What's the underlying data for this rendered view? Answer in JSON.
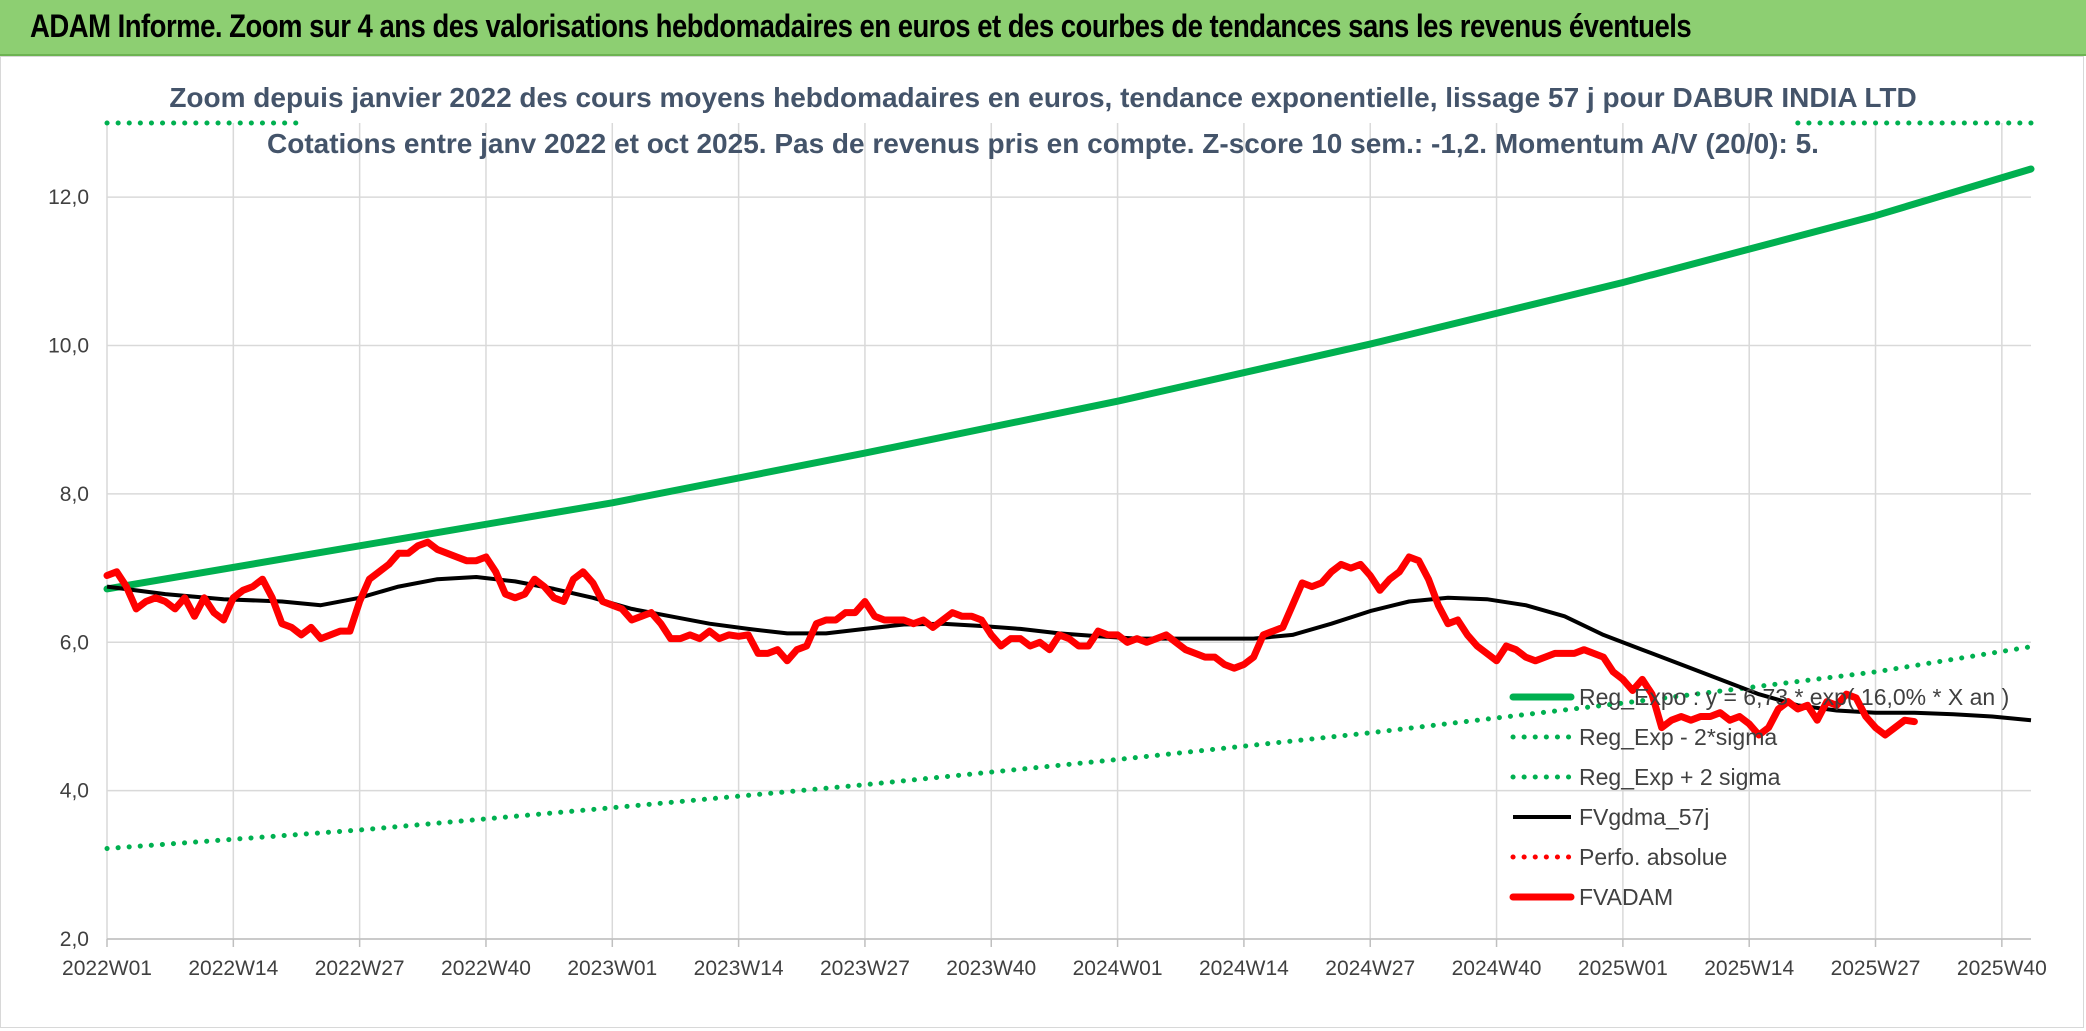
{
  "banner": {
    "title": "ADAM Informe. Zoom sur 4 ans des valorisations hebdomadaires en euros et des courbes de tendances sans les revenus éventuels"
  },
  "chart_data": {
    "type": "line",
    "title_lines": [
      "Zoom depuis janvier 2022 des cours moyens hebdomadaires en euros, tendance exponentielle, lissage 57 j pour DABUR INDIA LTD",
      "Cotations entre janv 2022 et oct 2025. Pas de revenus pris en compte. Z-score 10 sem.: -1,2. Momentum A/V (20/0): 5."
    ],
    "xlabel": "",
    "ylabel": "",
    "ylim": [
      2,
      13
    ],
    "x_range": [
      0,
      198
    ],
    "y_ticks": [
      {
        "value": 2,
        "label": "2,0"
      },
      {
        "value": 4,
        "label": "4,0"
      },
      {
        "value": 6,
        "label": "6,0"
      },
      {
        "value": 8,
        "label": "8,0"
      },
      {
        "value": 10,
        "label": "10,0"
      },
      {
        "value": 12,
        "label": "12,0"
      }
    ],
    "x_ticks": [
      {
        "value": 0,
        "label": "2022W01"
      },
      {
        "value": 13,
        "label": "2022W14"
      },
      {
        "value": 26,
        "label": "2022W27"
      },
      {
        "value": 39,
        "label": "2022W40"
      },
      {
        "value": 52,
        "label": "2023W01"
      },
      {
        "value": 65,
        "label": "2023W14"
      },
      {
        "value": 78,
        "label": "2023W27"
      },
      {
        "value": 91,
        "label": "2023W40"
      },
      {
        "value": 104,
        "label": "2024W01"
      },
      {
        "value": 117,
        "label": "2024W14"
      },
      {
        "value": 130,
        "label": "2024W27"
      },
      {
        "value": 143,
        "label": "2024W40"
      },
      {
        "value": 156,
        "label": "2025W01"
      },
      {
        "value": 169,
        "label": "2025W14"
      },
      {
        "value": 182,
        "label": "2025W27"
      },
      {
        "value": 195,
        "label": "2025W40"
      }
    ],
    "grid": true,
    "legend_position": "bottom-right",
    "colors": {
      "green": "#00b050",
      "black": "#000000",
      "red": "#ff0000",
      "grid": "#d9d9d9"
    },
    "series": [
      {
        "name": "Reg_Expo : y = 6,73 * exp( 16,0% *  X  an )",
        "style": "solid-thick",
        "color": "#00b050",
        "points": [
          [
            0,
            6.72
          ],
          [
            26,
            7.3
          ],
          [
            52,
            7.88
          ],
          [
            78,
            8.55
          ],
          [
            104,
            9.25
          ],
          [
            130,
            10.02
          ],
          [
            156,
            10.85
          ],
          [
            182,
            11.75
          ],
          [
            198,
            12.38
          ]
        ]
      },
      {
        "name": "Reg_Exp - 2*sigma",
        "style": "dotted",
        "color": "#00b050",
        "points": [
          [
            0,
            3.22
          ],
          [
            26,
            3.47
          ],
          [
            52,
            3.77
          ],
          [
            78,
            4.08
          ],
          [
            104,
            4.42
          ],
          [
            130,
            4.78
          ],
          [
            156,
            5.18
          ],
          [
            182,
            5.6
          ],
          [
            198,
            5.94
          ]
        ]
      },
      {
        "name": "Reg_Exp + 2 sigma",
        "style": "dotted",
        "color": "#00b050",
        "points": [
          [
            0,
            13.0
          ],
          [
            20,
            13.0
          ],
          [
            174,
            13.0
          ],
          [
            198,
            13.0
          ]
        ]
      },
      {
        "name": "FVgdma_57j",
        "style": "solid",
        "color": "#000000",
        "points": [
          [
            0,
            6.75
          ],
          [
            6,
            6.65
          ],
          [
            12,
            6.58
          ],
          [
            18,
            6.55
          ],
          [
            22,
            6.5
          ],
          [
            26,
            6.6
          ],
          [
            30,
            6.75
          ],
          [
            34,
            6.85
          ],
          [
            38,
            6.88
          ],
          [
            42,
            6.82
          ],
          [
            46,
            6.72
          ],
          [
            50,
            6.6
          ],
          [
            54,
            6.45
          ],
          [
            58,
            6.35
          ],
          [
            62,
            6.25
          ],
          [
            66,
            6.18
          ],
          [
            70,
            6.12
          ],
          [
            74,
            6.12
          ],
          [
            78,
            6.18
          ],
          [
            82,
            6.24
          ],
          [
            86,
            6.25
          ],
          [
            90,
            6.22
          ],
          [
            94,
            6.18
          ],
          [
            98,
            6.12
          ],
          [
            102,
            6.08
          ],
          [
            106,
            6.05
          ],
          [
            110,
            6.05
          ],
          [
            114,
            6.05
          ],
          [
            118,
            6.05
          ],
          [
            122,
            6.1
          ],
          [
            126,
            6.25
          ],
          [
            130,
            6.42
          ],
          [
            134,
            6.55
          ],
          [
            138,
            6.6
          ],
          [
            142,
            6.58
          ],
          [
            146,
            6.5
          ],
          [
            150,
            6.35
          ],
          [
            154,
            6.1
          ],
          [
            158,
            5.9
          ],
          [
            162,
            5.7
          ],
          [
            166,
            5.5
          ],
          [
            170,
            5.3
          ],
          [
            174,
            5.15
          ],
          [
            178,
            5.08
          ],
          [
            182,
            5.05
          ],
          [
            186,
            5.05
          ],
          [
            190,
            5.03
          ],
          [
            194,
            5.0
          ],
          [
            198,
            4.95
          ]
        ]
      },
      {
        "name": "Perfo. absolue",
        "style": "dotted",
        "color": "#ff0000",
        "points": []
      },
      {
        "name": "FVADAM",
        "style": "solid-thick",
        "color": "#ff0000",
        "points": [
          [
            0,
            6.9
          ],
          [
            1,
            6.95
          ],
          [
            2,
            6.75
          ],
          [
            3,
            6.45
          ],
          [
            4,
            6.55
          ],
          [
            5,
            6.6
          ],
          [
            6,
            6.55
          ],
          [
            7,
            6.45
          ],
          [
            8,
            6.6
          ],
          [
            9,
            6.35
          ],
          [
            10,
            6.6
          ],
          [
            11,
            6.4
          ],
          [
            12,
            6.3
          ],
          [
            13,
            6.6
          ],
          [
            14,
            6.7
          ],
          [
            15,
            6.75
          ],
          [
            16,
            6.85
          ],
          [
            17,
            6.6
          ],
          [
            18,
            6.25
          ],
          [
            19,
            6.2
          ],
          [
            20,
            6.1
          ],
          [
            21,
            6.2
          ],
          [
            22,
            6.05
          ],
          [
            23,
            6.1
          ],
          [
            24,
            6.15
          ],
          [
            25,
            6.15
          ],
          [
            26,
            6.55
          ],
          [
            27,
            6.85
          ],
          [
            28,
            6.95
          ],
          [
            29,
            7.05
          ],
          [
            30,
            7.2
          ],
          [
            31,
            7.2
          ],
          [
            32,
            7.3
          ],
          [
            33,
            7.35
          ],
          [
            34,
            7.25
          ],
          [
            35,
            7.2
          ],
          [
            36,
            7.15
          ],
          [
            37,
            7.1
          ],
          [
            38,
            7.1
          ],
          [
            39,
            7.15
          ],
          [
            40,
            6.95
          ],
          [
            41,
            6.65
          ],
          [
            42,
            6.6
          ],
          [
            43,
            6.65
          ],
          [
            44,
            6.85
          ],
          [
            45,
            6.75
          ],
          [
            46,
            6.6
          ],
          [
            47,
            6.55
          ],
          [
            48,
            6.85
          ],
          [
            49,
            6.95
          ],
          [
            50,
            6.8
          ],
          [
            51,
            6.55
          ],
          [
            52,
            6.5
          ],
          [
            53,
            6.45
          ],
          [
            54,
            6.3
          ],
          [
            55,
            6.35
          ],
          [
            56,
            6.4
          ],
          [
            57,
            6.25
          ],
          [
            58,
            6.05
          ],
          [
            59,
            6.05
          ],
          [
            60,
            6.1
          ],
          [
            61,
            6.05
          ],
          [
            62,
            6.15
          ],
          [
            63,
            6.05
          ],
          [
            64,
            6.1
          ],
          [
            65,
            6.08
          ],
          [
            66,
            6.1
          ],
          [
            67,
            5.85
          ],
          [
            68,
            5.85
          ],
          [
            69,
            5.9
          ],
          [
            70,
            5.75
          ],
          [
            71,
            5.9
          ],
          [
            72,
            5.95
          ],
          [
            73,
            6.25
          ],
          [
            74,
            6.3
          ],
          [
            75,
            6.3
          ],
          [
            76,
            6.4
          ],
          [
            77,
            6.4
          ],
          [
            78,
            6.55
          ],
          [
            79,
            6.35
          ],
          [
            80,
            6.3
          ],
          [
            81,
            6.3
          ],
          [
            82,
            6.3
          ],
          [
            83,
            6.25
          ],
          [
            84,
            6.3
          ],
          [
            85,
            6.2
          ],
          [
            86,
            6.3
          ],
          [
            87,
            6.4
          ],
          [
            88,
            6.35
          ],
          [
            89,
            6.35
          ],
          [
            90,
            6.3
          ],
          [
            91,
            6.1
          ],
          [
            92,
            5.95
          ],
          [
            93,
            6.05
          ],
          [
            94,
            6.05
          ],
          [
            95,
            5.95
          ],
          [
            96,
            6.0
          ],
          [
            97,
            5.9
          ],
          [
            98,
            6.1
          ],
          [
            99,
            6.05
          ],
          [
            100,
            5.95
          ],
          [
            101,
            5.95
          ],
          [
            102,
            6.15
          ],
          [
            103,
            6.1
          ],
          [
            104,
            6.1
          ],
          [
            105,
            6.0
          ],
          [
            106,
            6.05
          ],
          [
            107,
            6.0
          ],
          [
            108,
            6.05
          ],
          [
            109,
            6.1
          ],
          [
            110,
            6.0
          ],
          [
            111,
            5.9
          ],
          [
            112,
            5.85
          ],
          [
            113,
            5.8
          ],
          [
            114,
            5.8
          ],
          [
            115,
            5.7
          ],
          [
            116,
            5.65
          ],
          [
            117,
            5.7
          ],
          [
            118,
            5.8
          ],
          [
            119,
            6.1
          ],
          [
            120,
            6.15
          ],
          [
            121,
            6.2
          ],
          [
            122,
            6.5
          ],
          [
            123,
            6.8
          ],
          [
            124,
            6.75
          ],
          [
            125,
            6.8
          ],
          [
            126,
            6.95
          ],
          [
            127,
            7.05
          ],
          [
            128,
            7.0
          ],
          [
            129,
            7.05
          ],
          [
            130,
            6.9
          ],
          [
            131,
            6.7
          ],
          [
            132,
            6.85
          ],
          [
            133,
            6.95
          ],
          [
            134,
            7.15
          ],
          [
            135,
            7.1
          ],
          [
            136,
            6.85
          ],
          [
            137,
            6.5
          ],
          [
            138,
            6.25
          ],
          [
            139,
            6.3
          ],
          [
            140,
            6.1
          ],
          [
            141,
            5.95
          ],
          [
            142,
            5.85
          ],
          [
            143,
            5.75
          ],
          [
            144,
            5.95
          ],
          [
            145,
            5.9
          ],
          [
            146,
            5.8
          ],
          [
            147,
            5.75
          ],
          [
            148,
            5.8
          ],
          [
            149,
            5.85
          ],
          [
            150,
            5.85
          ],
          [
            151,
            5.85
          ],
          [
            152,
            5.9
          ],
          [
            153,
            5.85
          ],
          [
            154,
            5.8
          ],
          [
            155,
            5.6
          ],
          [
            156,
            5.5
          ],
          [
            157,
            5.35
          ],
          [
            158,
            5.5
          ],
          [
            159,
            5.3
          ],
          [
            160,
            4.85
          ],
          [
            161,
            4.95
          ],
          [
            162,
            5.0
          ],
          [
            163,
            4.95
          ],
          [
            164,
            5.0
          ],
          [
            165,
            5.0
          ],
          [
            166,
            5.05
          ],
          [
            167,
            4.95
          ],
          [
            168,
            5.0
          ],
          [
            169,
            4.9
          ],
          [
            170,
            4.75
          ],
          [
            171,
            4.85
          ],
          [
            172,
            5.1
          ],
          [
            173,
            5.2
          ],
          [
            174,
            5.1
          ],
          [
            175,
            5.15
          ],
          [
            176,
            4.95
          ],
          [
            177,
            5.2
          ],
          [
            178,
            5.15
          ],
          [
            179,
            5.3
          ],
          [
            180,
            5.25
          ],
          [
            181,
            5.0
          ],
          [
            182,
            4.85
          ],
          [
            183,
            4.75
          ],
          [
            184,
            4.85
          ],
          [
            185,
            4.95
          ],
          [
            186,
            4.93
          ]
        ]
      }
    ]
  }
}
